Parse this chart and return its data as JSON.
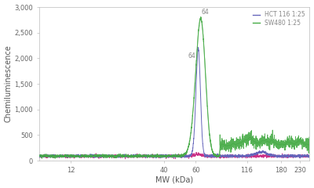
{
  "title": "",
  "xlabel": "MW (kDa)",
  "ylabel": "Chemiluminescence",
  "ylim": [
    0,
    3000
  ],
  "yticks": [
    0,
    500,
    1000,
    1500,
    2000,
    2500,
    3000
  ],
  "ytick_labels": [
    "0",
    "500",
    "1,000",
    "1,500",
    "2,000",
    "2,500",
    "3,000"
  ],
  "xticks": [
    12,
    40,
    60,
    116,
    180,
    230
  ],
  "xlim_log": [
    1.0,
    2.4
  ],
  "peak_label_green": "64",
  "peak_label_blue": "64",
  "legend": [
    "HCT 116 1:25",
    "SW480 1:25"
  ],
  "legend_colors": [
    "#6666bb",
    "#44aa44"
  ],
  "line_blue_color": "#6666bb",
  "line_green_color": "#44aa44",
  "line_pink_color": "#cc3388",
  "background_color": "#ffffff",
  "label_fontsize": 7,
  "tick_fontsize": 6,
  "legend_fontsize": 5.5,
  "annotation_fontsize": 5.5
}
